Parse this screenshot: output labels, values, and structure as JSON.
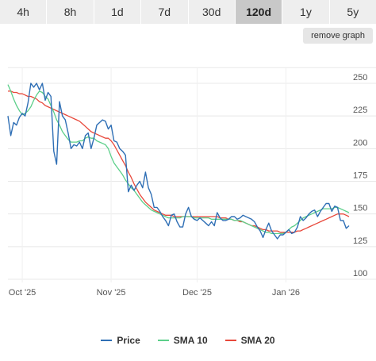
{
  "tabs": [
    {
      "label": "4h",
      "active": false
    },
    {
      "label": "8h",
      "active": false
    },
    {
      "label": "1d",
      "active": false
    },
    {
      "label": "7d",
      "active": false
    },
    {
      "label": "30d",
      "active": false
    },
    {
      "label": "120d",
      "active": true
    },
    {
      "label": "1y",
      "active": false
    },
    {
      "label": "5y",
      "active": false
    }
  ],
  "remove_graph_label": "remove graph",
  "legend": [
    {
      "label": "Price",
      "color": "#2f6fb5"
    },
    {
      "label": "SMA 10",
      "color": "#5ccf8a"
    },
    {
      "label": "SMA 20",
      "color": "#e8483b"
    }
  ],
  "chart_data": {
    "type": "line",
    "ylim": [
      100,
      262
    ],
    "y_ticks": [
      250,
      225,
      200,
      175,
      150,
      125,
      100
    ],
    "x_ticks": [
      {
        "label": "Oct '25",
        "day": 5
      },
      {
        "label": "Nov '25",
        "day": 36
      },
      {
        "label": "Dec '25",
        "day": 66
      },
      {
        "label": "Jan '26",
        "day": 97
      }
    ],
    "x_range": [
      0,
      119
    ],
    "series": [
      {
        "name": "Price",
        "color": "#2f6fb5",
        "values": [
          225,
          210,
          220,
          218,
          224,
          227,
          225,
          235,
          250,
          247,
          250,
          245,
          250,
          237,
          243,
          240,
          198,
          188,
          236,
          225,
          222,
          212,
          200,
          203,
          202,
          205,
          200,
          210,
          212,
          200,
          208,
          218,
          220,
          222,
          221,
          215,
          218,
          206,
          205,
          200,
          198,
          195,
          167,
          172,
          168,
          172,
          175,
          170,
          182,
          170,
          165,
          155,
          155,
          152,
          148,
          145,
          141,
          149,
          150,
          144,
          140,
          140,
          150,
          155,
          148,
          146,
          145,
          147,
          145,
          143,
          141,
          144,
          141,
          151,
          147,
          145,
          145,
          146,
          148,
          148,
          146,
          147,
          149,
          148,
          147,
          146,
          144,
          140,
          137,
          132,
          138,
          143,
          137,
          134,
          131,
          134,
          134,
          136,
          138,
          135,
          136,
          140,
          148,
          145,
          147,
          150,
          152,
          153,
          148,
          152,
          155,
          158,
          158,
          152,
          156,
          155,
          145,
          145,
          139,
          141
        ]
      },
      {
        "name": "SMA 10",
        "color": "#5ccf8a",
        "values": [
          249,
          244,
          238,
          233,
          229,
          226,
          227,
          229,
          232,
          237,
          241,
          244,
          243,
          240,
          238,
          233,
          228,
          222,
          218,
          213,
          210,
          207,
          205,
          205,
          205,
          206,
          206,
          208,
          209,
          208,
          208,
          206,
          205,
          204,
          203,
          200,
          194,
          189,
          186,
          183,
          180,
          176,
          173,
          170,
          168,
          165,
          162,
          159,
          157,
          155,
          153,
          152,
          151,
          150,
          149,
          148,
          147,
          147,
          147,
          147,
          147,
          148,
          148,
          148,
          148,
          147,
          147,
          147,
          147,
          147,
          147,
          146,
          146,
          146,
          146,
          146,
          146,
          146,
          146,
          145,
          145,
          145,
          144,
          143,
          142,
          141,
          140,
          139,
          138,
          137,
          136,
          136,
          135,
          135,
          135,
          135,
          135,
          136,
          138,
          140,
          141,
          143,
          145,
          147,
          148,
          149,
          150,
          151,
          152,
          153,
          154,
          154,
          154,
          154,
          155,
          155,
          154,
          153,
          152,
          151
        ]
      },
      {
        "name": "SMA 20",
        "color": "#e8483b",
        "values": [
          244,
          244,
          243,
          243,
          242,
          242,
          241,
          240,
          240,
          239,
          238,
          236,
          235,
          233,
          232,
          231,
          230,
          229,
          228,
          227,
          226,
          225,
          224,
          223,
          222,
          221,
          219,
          217,
          215,
          213,
          212,
          211,
          210,
          209,
          208,
          208,
          206,
          203,
          199,
          195,
          191,
          187,
          182,
          178,
          173,
          169,
          165,
          162,
          159,
          157,
          155,
          153,
          152,
          151,
          150,
          149,
          149,
          149,
          148,
          148,
          148,
          148,
          148,
          148,
          148,
          148,
          148,
          148,
          148,
          148,
          148,
          148,
          148,
          148,
          147,
          147,
          147,
          146,
          146,
          145,
          145,
          144,
          144,
          143,
          142,
          141,
          141,
          140,
          139,
          138,
          138,
          137,
          137,
          137,
          137,
          136,
          136,
          136,
          136,
          136,
          136,
          137,
          137,
          138,
          139,
          140,
          141,
          142,
          143,
          144,
          145,
          146,
          147,
          148,
          149,
          150,
          150,
          150,
          149,
          148
        ]
      }
    ]
  }
}
